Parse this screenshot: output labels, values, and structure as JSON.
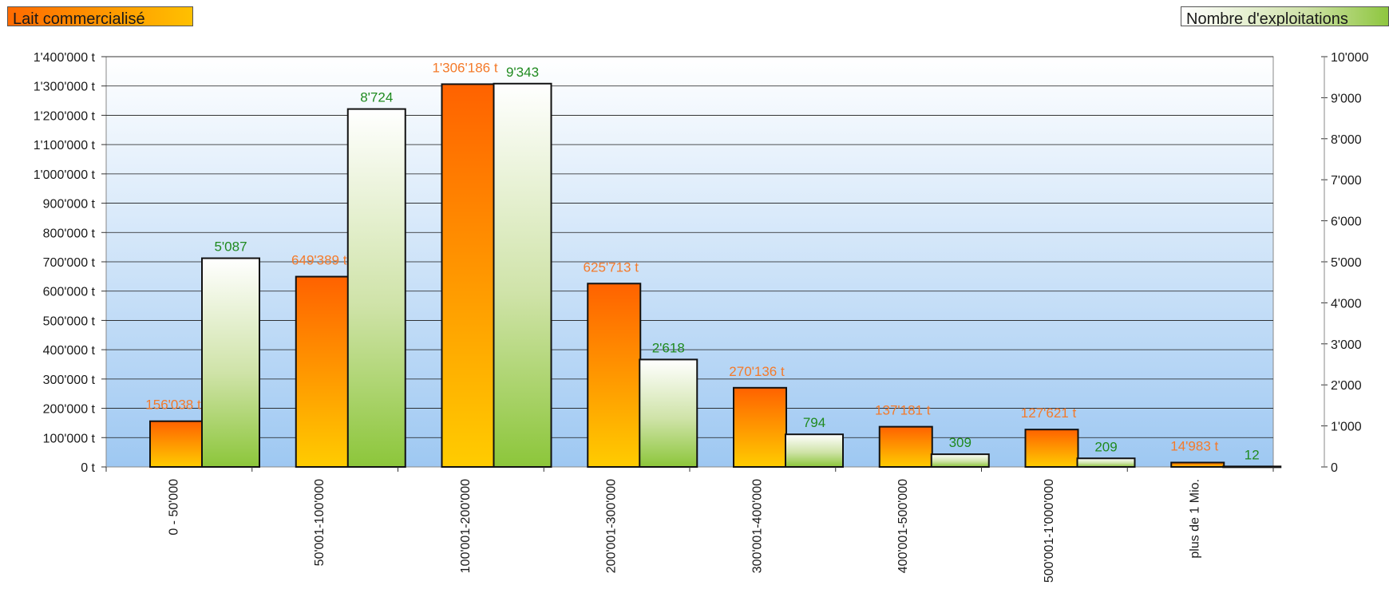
{
  "chart_data": {
    "type": "bar",
    "categories": [
      "0 - 50'000",
      "50'001-100'000",
      "100'001-200'000",
      "200'001-300'000",
      "300'001-400'000",
      "400'001-500'000",
      "500'001-1'000'000",
      "plus de 1 Mio."
    ],
    "series": [
      {
        "name": "Lait commercialisé",
        "axis": "left",
        "color": "#ff7a00",
        "values": [
          156038,
          649389,
          1306186,
          625713,
          270136,
          137181,
          127621,
          14983
        ],
        "labels": [
          "156'038 t",
          "649'389 t",
          "1'306'186 t",
          "625'713 t",
          "270'136 t",
          "137'181 t",
          "127'621 t",
          "14'983 t"
        ]
      },
      {
        "name": "Nombre d'exploitations",
        "axis": "right",
        "color": "#8ec63f",
        "values": [
          5087,
          8724,
          9343,
          2618,
          794,
          309,
          209,
          12
        ],
        "labels": [
          "5'087",
          "8'724",
          "9'343",
          "2'618",
          "794",
          "309",
          "209",
          "12"
        ]
      }
    ],
    "y_left": {
      "lim": [
        0,
        1400000
      ],
      "ticks": [
        "0 t",
        "100'000 t",
        "200'000 t",
        "300'000 t",
        "400'000 t",
        "500'000 t",
        "600'000 t",
        "700'000 t",
        "800'000 t",
        "900'000 t",
        "1'000'000 t",
        "1'100'000 t",
        "1'200'000 t",
        "1'300'000 t",
        "1'400'000 t"
      ]
    },
    "y_right": {
      "lim": [
        0,
        10000
      ],
      "ticks": [
        "0",
        "1'000",
        "2'000",
        "3'000",
        "4'000",
        "5'000",
        "6'000",
        "7'000",
        "8'000",
        "9'000",
        "10'000"
      ]
    },
    "grid": true,
    "legend_placement": "top"
  },
  "legend": {
    "milk_label": "Lait commercialisé",
    "farms_label": "Nombre d'exploitations"
  }
}
